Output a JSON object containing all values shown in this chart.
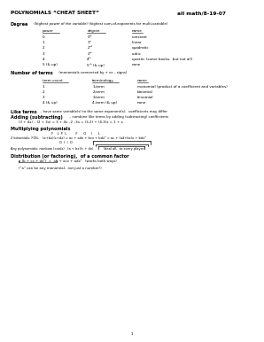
{
  "title_left": "POLYNOMIALS “CHEAT SHEET”",
  "title_right": "all math/8-19-07",
  "bg_color": "#ffffff",
  "text_color": "#000000",
  "fs_title": 4.2,
  "fs_section": 3.6,
  "fs_body": 3.0,
  "lm": 0.04,
  "deg_col1": 0.16,
  "deg_col2": 0.33,
  "deg_col3": 0.5,
  "term_col1": 0.16,
  "term_col2": 0.35,
  "term_col3": 0.52
}
